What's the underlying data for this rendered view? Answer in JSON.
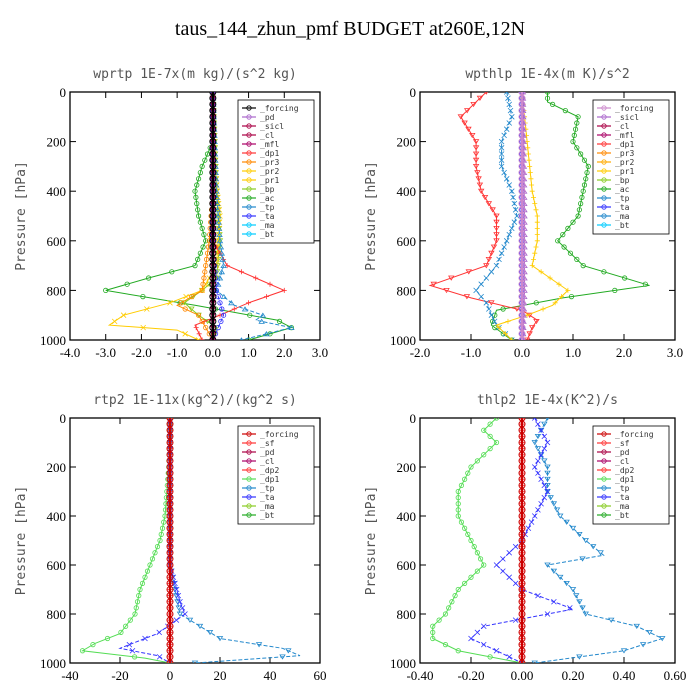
{
  "figure_title": "taus_144_zhun_pmf  BUDGET at260E,12N",
  "chart_data": [
    {
      "type": "line",
      "title": "wprtp  1E-7x(m kg)/(s^2 kg)",
      "ylabel": "Pressure [hPa]",
      "xlim": [
        -4.0,
        3.0
      ],
      "ylim": [
        1000,
        0
      ],
      "y_inverted": true,
      "xticks": [
        -4.0,
        -3.0,
        -2.0,
        -1.0,
        0.0,
        1.0,
        2.0,
        3.0
      ],
      "xtick_labels": [
        "-4.0",
        "-3.0",
        "-2.0",
        "-1.0",
        "0.0",
        "1.0",
        "2.0",
        "3.0"
      ],
      "yticks": [
        0,
        200,
        400,
        600,
        800,
        1000
      ],
      "ytick_labels": [
        "0",
        "200",
        "400",
        "600",
        "800",
        "1000"
      ],
      "legend": [
        "_forcing",
        "_pd",
        "_sicl",
        "_cl",
        "_mfl",
        "_dp1",
        "_pr3",
        "_pr2",
        "_pr1",
        "_bp",
        "_ac",
        "_tp",
        "_ta",
        "_ma",
        "_bt"
      ],
      "legend_position": "top-right",
      "series": [
        {
          "name": "_forcing",
          "color": "#000000",
          "p": [
            0,
            200,
            400,
            600,
            800,
            1000
          ],
          "v": [
            0,
            0,
            0,
            0,
            0,
            0
          ]
        },
        {
          "name": "_ac",
          "color": "#22aa22",
          "p": [
            0,
            200,
            300,
            400,
            500,
            600,
            700,
            750,
            800,
            860,
            920,
            950,
            1000
          ],
          "v": [
            0,
            0,
            -0.3,
            -0.5,
            -0.4,
            -0.2,
            -0.5,
            -1.8,
            -3.0,
            -0.5,
            1.8,
            2.2,
            1.0
          ]
        },
        {
          "name": "_bp",
          "color": "#88cc22",
          "p": [
            0,
            400,
            600,
            750,
            800,
            850,
            900,
            950,
            1000
          ],
          "v": [
            0,
            0.1,
            0.2,
            0.1,
            -0.3,
            -0.8,
            -0.4,
            0.1,
            0
          ]
        },
        {
          "name": "_pr1",
          "color": "#ffcc00",
          "p": [
            0,
            300,
            500,
            700,
            800,
            850,
            900,
            940,
            960,
            1000
          ],
          "v": [
            0,
            0.05,
            0.2,
            0.1,
            -0.3,
            -1.2,
            -2.5,
            -2.9,
            -1.0,
            -0.4
          ]
        },
        {
          "name": "_dp1",
          "color": "#ff3333",
          "p": [
            0,
            600,
            700,
            750,
            800,
            850,
            900,
            940,
            1000
          ],
          "v": [
            0,
            0,
            0.4,
            1.2,
            2.0,
            1.0,
            0.2,
            -0.5,
            -0.3
          ]
        },
        {
          "name": "_pr3",
          "color": "#ff8800",
          "p": [
            0,
            400,
            600,
            800,
            860,
            900,
            1000
          ],
          "v": [
            0,
            0,
            -0.1,
            -0.3,
            -1.0,
            -0.4,
            0
          ]
        },
        {
          "name": "_tp",
          "color": "#2288cc",
          "p": [
            0,
            200,
            400,
            600,
            700,
            800,
            860,
            900,
            920,
            950,
            1000
          ],
          "v": [
            0,
            0.05,
            0.1,
            0.2,
            0.3,
            0.1,
            0.6,
            1.4,
            1.2,
            2.2,
            0.8
          ]
        },
        {
          "name": "_ta",
          "color": "#3333ff",
          "p": [
            0,
            600,
            800,
            900,
            1000
          ],
          "v": [
            0,
            0,
            0.1,
            0.3,
            0
          ]
        },
        {
          "name": "_cl",
          "color": "#aa0044",
          "p": [
            0,
            1000
          ],
          "v": [
            0,
            0
          ]
        },
        {
          "name": "_mfl",
          "color": "#aa0066",
          "p": [
            0,
            1000
          ],
          "v": [
            0,
            0
          ]
        }
      ]
    },
    {
      "type": "line",
      "title": "wpthlp  1E-4x(m K)/s^2",
      "ylabel": "Pressure [hPa]",
      "xlim": [
        -2.0,
        3.0
      ],
      "ylim": [
        1000,
        0
      ],
      "y_inverted": true,
      "xticks": [
        -2.0,
        -1.0,
        0.0,
        1.0,
        2.0,
        3.0
      ],
      "xtick_labels": [
        "-2.0",
        "-1.0",
        "0.0",
        "1.0",
        "2.0",
        "3.0"
      ],
      "yticks": [
        0,
        200,
        400,
        600,
        800,
        1000
      ],
      "ytick_labels": [
        "0",
        "200",
        "400",
        "600",
        "800",
        "1000"
      ],
      "legend": [
        "_forcing",
        "_sicl",
        "_cl",
        "_mfl",
        "_dp1",
        "_pr3",
        "_pr2",
        "_pr1",
        "_bp",
        "_ac",
        "_tp",
        "_ta",
        "_ma",
        "_bt"
      ],
      "legend_position": "top-right",
      "series": [
        {
          "name": "_forcing",
          "color": "#cc88cc",
          "p": [
            0,
            200,
            400,
            600,
            800,
            1000
          ],
          "v": [
            0,
            0,
            0,
            0,
            0,
            0
          ]
        },
        {
          "name": "_ac",
          "color": "#22aa22",
          "p": [
            0,
            40,
            100,
            200,
            300,
            400,
            500,
            600,
            700,
            780,
            830,
            880,
            940,
            1000
          ],
          "v": [
            0.5,
            0.5,
            1.1,
            1.0,
            1.3,
            1.2,
            1.1,
            0.7,
            1.2,
            2.5,
            0.8,
            -0.5,
            -0.6,
            -0.2
          ]
        },
        {
          "name": "_dp1",
          "color": "#ff3333",
          "p": [
            0,
            100,
            200,
            300,
            400,
            500,
            600,
            700,
            780,
            830,
            880,
            920,
            950,
            1000
          ],
          "v": [
            -0.7,
            -1.2,
            -0.9,
            -0.9,
            -0.8,
            -0.5,
            -0.5,
            -0.7,
            -1.8,
            -1.0,
            0.0,
            0.3,
            0.2,
            0.1
          ]
        },
        {
          "name": "_tp",
          "color": "#2288cc",
          "p": [
            0,
            100,
            200,
            300,
            400,
            500,
            600,
            700,
            800,
            850,
            900,
            940,
            1000
          ],
          "v": [
            -0.3,
            -0.2,
            -0.4,
            -0.4,
            -0.2,
            -0.1,
            -0.3,
            -0.5,
            -0.9,
            -0.7,
            -0.6,
            -0.5,
            -0.2
          ]
        },
        {
          "name": "_pr1",
          "color": "#ffcc00",
          "p": [
            0,
            200,
            400,
            500,
            600,
            700,
            800,
            860,
            900,
            940,
            1000
          ],
          "v": [
            0,
            0.1,
            0.2,
            0.3,
            0.3,
            0.2,
            0.9,
            0.6,
            0.1,
            -0.5,
            -0.2
          ]
        },
        {
          "name": "_ta",
          "color": "#3333ff",
          "p": [
            0,
            1000
          ],
          "v": [
            0,
            0
          ]
        },
        {
          "name": "_sicl",
          "color": "#aa66cc",
          "p": [
            0,
            500,
            800,
            1000
          ],
          "v": [
            0.02,
            0.05,
            0.05,
            0.02
          ]
        }
      ]
    },
    {
      "type": "line",
      "title": "rtp2  1E-11x(kg^2)/(kg^2 s)",
      "ylabel": "Pressure [hPa]",
      "xlim": [
        -40,
        60
      ],
      "ylim": [
        1000,
        0
      ],
      "y_inverted": true,
      "xticks": [
        -40,
        -20,
        0,
        20,
        40,
        60
      ],
      "xtick_labels": [
        "-40",
        "-20",
        "0",
        "20",
        "40",
        "60"
      ],
      "yticks": [
        0,
        200,
        400,
        600,
        800,
        1000
      ],
      "ytick_labels": [
        "0",
        "200",
        "400",
        "600",
        "800",
        "1000"
      ],
      "legend": [
        "_forcing",
        "_sf",
        "_pd",
        "_cl",
        "_dp2",
        "_dp1",
        "_tp",
        "_ta",
        "_ma",
        "_bt"
      ],
      "legend_position": "top-right",
      "series": [
        {
          "name": "_forcing",
          "color": "#cc0000",
          "p": [
            0,
            200,
            400,
            600,
            800,
            1000
          ],
          "v": [
            0,
            0,
            0,
            0,
            0,
            0
          ]
        },
        {
          "name": "_dp1",
          "color": "#55dd55",
          "p": [
            0,
            200,
            400,
            500,
            600,
            700,
            800,
            880,
            920,
            950,
            980,
            1000
          ],
          "v": [
            0,
            -0.5,
            -2,
            -4,
            -8,
            -12,
            -14,
            -20,
            -30,
            -35,
            -10,
            0
          ]
        },
        {
          "name": "_tp",
          "color": "#2288cc",
          "p": [
            0,
            600,
            700,
            800,
            900,
            940,
            970,
            1000
          ],
          "v": [
            0,
            0,
            2,
            4,
            20,
            45,
            52,
            10
          ]
        },
        {
          "name": "_ta",
          "color": "#3333ff",
          "p": [
            0,
            600,
            750,
            800,
            880,
            940,
            970,
            1000
          ],
          "v": [
            0,
            0,
            4,
            6,
            -5,
            -20,
            -5,
            0
          ]
        },
        {
          "name": "_sf",
          "color": "#ff3333",
          "p": [
            0,
            1000
          ],
          "v": [
            0,
            0
          ]
        }
      ]
    },
    {
      "type": "line",
      "title": "thlp2  1E-4x(K^2)/s",
      "ylabel": "Pressure [hPa]",
      "xlim": [
        -0.4,
        0.6
      ],
      "ylim": [
        1000,
        0
      ],
      "y_inverted": true,
      "xticks": [
        -0.4,
        -0.2,
        0.0,
        0.2,
        0.4,
        0.6
      ],
      "xtick_labels": [
        "-0.40",
        "-0.20",
        "0.00",
        "0.20",
        "0.40",
        "0.60"
      ],
      "yticks": [
        0,
        200,
        400,
        600,
        800,
        1000
      ],
      "ytick_labels": [
        "0",
        "200",
        "400",
        "600",
        "800",
        "1000"
      ],
      "legend": [
        "_forcing",
        "_sf",
        "_pd",
        "_cl",
        "_dp2",
        "_dp1",
        "_tp",
        "_ta",
        "_ma",
        "_bt"
      ],
      "legend_position": "top-right",
      "series": [
        {
          "name": "_forcing",
          "color": "#cc0000",
          "p": [
            0,
            200,
            400,
            600,
            800,
            1000
          ],
          "v": [
            0,
            0,
            0,
            0,
            0,
            0
          ]
        },
        {
          "name": "_dp1",
          "color": "#55dd55",
          "p": [
            0,
            50,
            100,
            200,
            300,
            400,
            500,
            600,
            700,
            800,
            850,
            900,
            950,
            1000
          ],
          "v": [
            -0.1,
            -0.15,
            -0.1,
            -0.2,
            -0.25,
            -0.25,
            -0.2,
            -0.15,
            -0.25,
            -0.3,
            -0.35,
            -0.35,
            -0.25,
            0
          ]
        },
        {
          "name": "_tp",
          "color": "#2288cc",
          "p": [
            0,
            100,
            200,
            300,
            400,
            500,
            560,
            600,
            700,
            800,
            850,
            900,
            950,
            1000
          ],
          "v": [
            0.1,
            0.05,
            0.1,
            0.1,
            0.15,
            0.25,
            0.32,
            0.1,
            0.2,
            0.25,
            0.45,
            0.55,
            0.4,
            0.05
          ]
        },
        {
          "name": "_ta",
          "color": "#3333ff",
          "p": [
            0,
            100,
            200,
            300,
            500,
            600,
            700,
            780,
            850,
            900,
            950,
            1000
          ],
          "v": [
            0.05,
            0.1,
            0.05,
            0.1,
            0.0,
            -0.1,
            0.0,
            0.2,
            -0.15,
            -0.2,
            -0.1,
            0
          ]
        },
        {
          "name": "_sf",
          "color": "#ff3333",
          "p": [
            0,
            1000
          ],
          "v": [
            0,
            0
          ]
        }
      ]
    }
  ]
}
